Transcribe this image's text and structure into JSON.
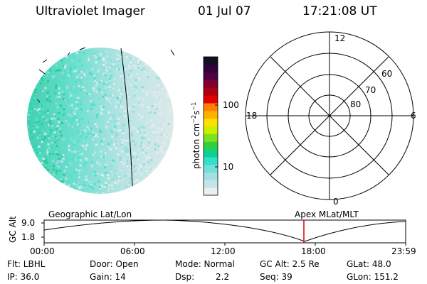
{
  "header": {
    "title": "Ultraviolet Imager",
    "date": "01 Jul 07",
    "time": "17:21:08 UT"
  },
  "colorbar": {
    "label_main": "photon cm",
    "label_sup1": "−2",
    "label_mid": "s",
    "label_sup2": "−1",
    "ticks": [
      "100",
      "10"
    ],
    "colors": [
      "#e8f0f0",
      "#c6e4e8",
      "#a0e0e0",
      "#70e0d8",
      "#30e0c8",
      "#10d090",
      "#30d040",
      "#80e020",
      "#c8f000",
      "#ffe000",
      "#ffb000",
      "#ff8000",
      "#e00000",
      "#b00010",
      "#800030",
      "#500040",
      "#300040",
      "#101020"
    ]
  },
  "polar_grid": {
    "labels": [
      "12",
      "60",
      "70",
      "80",
      "18",
      "6",
      "0"
    ]
  },
  "timeline": {
    "left_label": "Geographic Lat/Lon",
    "right_label": "Apex MLat/MLT",
    "axis_title": "GC Alt",
    "y_ticks": [
      "9.0",
      "1.8"
    ],
    "x_ticks": [
      "00:00",
      "06:00",
      "12:00",
      "18:00",
      "23:59"
    ],
    "marker_color": "#e00000"
  },
  "info": {
    "flt": "Flt: LBHL",
    "ip": "IP: 36.0",
    "door": "Door: Open",
    "gain": "Gain: 14",
    "mode": "Mode: Normal",
    "dsp_label": "Dsp:",
    "dsp_value": "2.2",
    "gc_alt": "GC Alt: 2.5 Re",
    "seq": "Seq: 39",
    "glat": "GLat: 48.0",
    "glon": "GLon: 151.2"
  }
}
